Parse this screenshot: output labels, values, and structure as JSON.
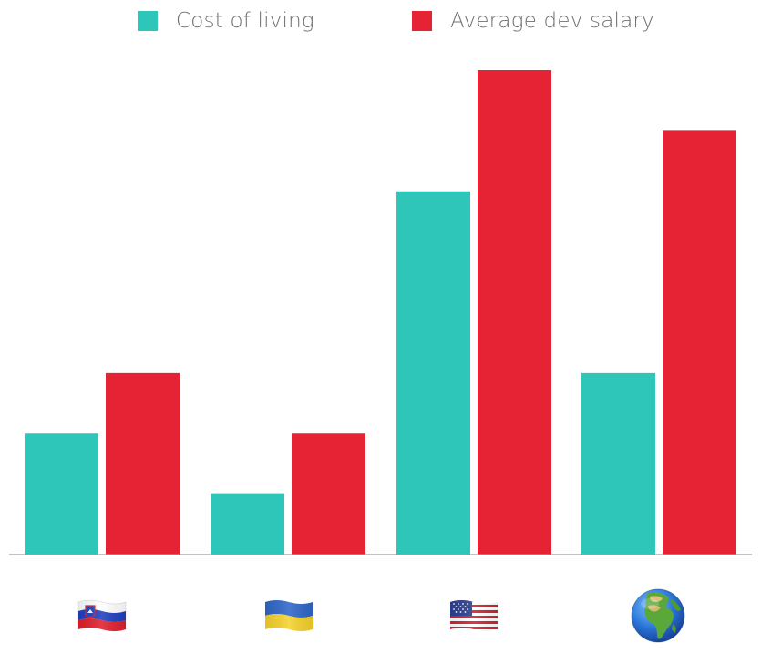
{
  "chart_data": {
    "type": "bar",
    "title": "",
    "xlabel": "",
    "ylabel": "",
    "categories": [
      "slovenia-flag-icon",
      "ukraine-flag-icon",
      "usa-flag-icon",
      "globe-icon"
    ],
    "series": [
      {
        "name": "Cost of living",
        "color": "#2ec6b8",
        "values": [
          2,
          1,
          6,
          3
        ]
      },
      {
        "name": "Average dev salary",
        "color": "#e62235",
        "values": [
          3,
          2,
          8,
          7
        ]
      }
    ],
    "ylim": [
      0,
      8.2
    ],
    "grid": false,
    "legend": "top-center"
  },
  "colors": {
    "axis": "#9e9e9e"
  }
}
